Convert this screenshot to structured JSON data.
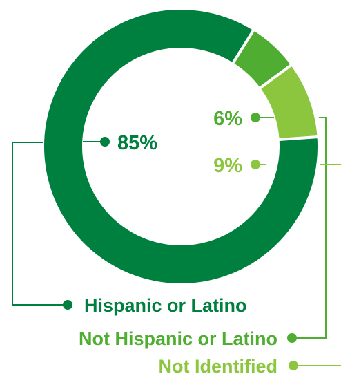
{
  "chart_data": {
    "type": "donut",
    "title": "",
    "categories": [
      "Hispanic or Latino",
      "Not Hispanic or Latino",
      "Not Identified"
    ],
    "values": [
      85,
      6,
      9
    ],
    "value_labels": [
      "85%",
      "6%",
      "9%"
    ],
    "colors": [
      "#00803e",
      "#4fad32",
      "#8cc63f"
    ],
    "legend": "bottom-right"
  }
}
